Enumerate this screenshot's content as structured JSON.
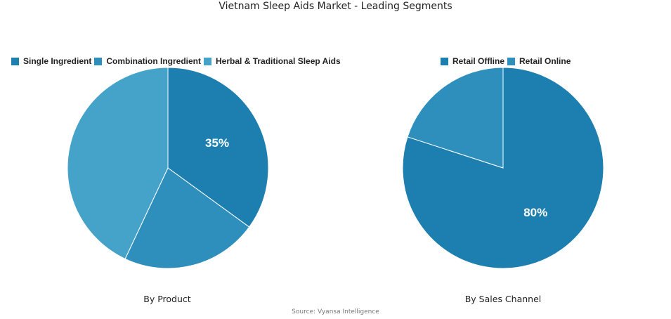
{
  "page": {
    "title": "Vietnam Sleep Aids Market - Leading Segments",
    "source": "Source: Vyansa Intelligence"
  },
  "chart_data": [
    {
      "type": "pie",
      "title": "By Product",
      "legend_position": "top",
      "slices": [
        {
          "label": "Single Ingredient",
          "value": 35,
          "color": "#1c7fb0",
          "data_label": "35%"
        },
        {
          "label": "Combination Ingredient",
          "value": 22,
          "color": "#2e8fbd",
          "data_label": ""
        },
        {
          "label": "Herbal & Traditional Sleep Aids",
          "value": 43,
          "color": "#45a2c8",
          "data_label": ""
        }
      ]
    },
    {
      "type": "pie",
      "title": "By Sales Channel",
      "legend_position": "top",
      "slices": [
        {
          "label": "Retail Offline",
          "value": 80,
          "color": "#1c7fb0",
          "data_label": "80%"
        },
        {
          "label": "Retail Online",
          "value": 20,
          "color": "#2e8fbd",
          "data_label": ""
        }
      ]
    }
  ]
}
